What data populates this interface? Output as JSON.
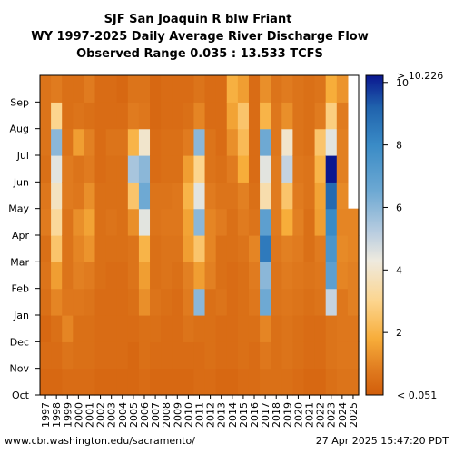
{
  "chart_data": {
    "type": "heatmap",
    "title_lines": [
      "SJF San Joaquin R blw Friant",
      "WY 1997-2025 Daily Average River Discharge Flow",
      "Observed Range 0.035 : 13.533 TCFS"
    ],
    "x_tick_labels": [
      "1997",
      "1998",
      "1999",
      "2000",
      "2001",
      "2002",
      "2003",
      "2004",
      "2005",
      "2006",
      "2007",
      "2008",
      "2009",
      "2010",
      "2011",
      "2012",
      "2013",
      "2014",
      "2015",
      "2016",
      "2017",
      "2018",
      "2019",
      "2020",
      "2021",
      "2022",
      "2023",
      "2024",
      "2025"
    ],
    "y_tick_labels": [
      "Oct",
      "Nov",
      "Dec",
      "Jan",
      "Feb",
      "Mar",
      "Apr",
      "May",
      "Jun",
      "Jul",
      "Aug",
      "Sep"
    ],
    "years": [
      1997,
      1998,
      1999,
      2000,
      2001,
      2002,
      2003,
      2004,
      2005,
      2006,
      2007,
      2008,
      2009,
      2010,
      2011,
      2012,
      2013,
      2014,
      2015,
      2016,
      2017,
      2018,
      2019,
      2020,
      2021,
      2022,
      2023,
      2024,
      2025
    ],
    "months": [
      "Oct",
      "Nov",
      "Dec",
      "Jan",
      "Feb",
      "Mar",
      "Apr",
      "May",
      "Jun",
      "Jul",
      "Aug",
      "Sep"
    ],
    "units": "TCFS",
    "colorbar": {
      "min": 0,
      "max": 10.226,
      "top_label": "> 10.226",
      "bottom_label": "< 0.051",
      "tick_values": [
        2,
        4,
        6,
        8,
        10
      ],
      "tick_labels": [
        "2",
        "4",
        "6",
        "8",
        "10"
      ]
    },
    "color_stops": [
      {
        "v": 0.0,
        "c": "#d15d0a"
      },
      {
        "v": 0.8,
        "c": "#e07b1f"
      },
      {
        "v": 1.8,
        "c": "#f7ad3a"
      },
      {
        "v": 3.0,
        "c": "#fcd58e"
      },
      {
        "v": 4.3,
        "c": "#eeeadf"
      },
      {
        "v": 5.2,
        "c": "#b9cde0"
      },
      {
        "v": 6.5,
        "c": "#6ea9d3"
      },
      {
        "v": 8.0,
        "c": "#3a8bc6"
      },
      {
        "v": 9.2,
        "c": "#2063ad"
      },
      {
        "v": 10.226,
        "c": "#0a178f"
      }
    ],
    "grid": false,
    "flow_monthly": [
      [
        0.3,
        0.4,
        0.3,
        0.5,
        0.6,
        0.5,
        0.8,
        0.7,
        0.5,
        0.6,
        0.6,
        0.6
      ],
      [
        0.3,
        0.4,
        0.5,
        1.0,
        1.5,
        2.5,
        3.2,
        3.8,
        4.5,
        6.0,
        3.0,
        0.8
      ],
      [
        0.4,
        0.6,
        1.0,
        0.7,
        0.6,
        0.6,
        0.6,
        0.8,
        0.8,
        0.6,
        0.5,
        0.5
      ],
      [
        0.4,
        0.5,
        0.5,
        0.7,
        0.9,
        1.0,
        1.2,
        0.7,
        0.6,
        1.5,
        0.6,
        0.5
      ],
      [
        0.4,
        0.5,
        0.5,
        0.6,
        0.8,
        1.3,
        1.6,
        1.2,
        0.8,
        0.9,
        0.5,
        0.8
      ],
      [
        0.3,
        0.4,
        0.4,
        0.4,
        0.5,
        0.5,
        0.5,
        0.5,
        0.4,
        0.4,
        0.4,
        0.4
      ],
      [
        0.3,
        0.4,
        0.4,
        0.4,
        0.4,
        0.5,
        0.6,
        0.5,
        0.5,
        0.6,
        0.4,
        0.4
      ],
      [
        0.3,
        0.4,
        0.4,
        0.4,
        0.4,
        0.5,
        0.5,
        0.5,
        0.5,
        0.6,
        0.4,
        0.3
      ],
      [
        0.3,
        0.3,
        0.4,
        0.5,
        0.6,
        0.6,
        1.2,
        2.5,
        5.5,
        2.0,
        0.8,
        0.6
      ],
      [
        0.4,
        0.5,
        0.5,
        1.2,
        1.5,
        2.0,
        4.5,
        6.5,
        6.0,
        4.0,
        0.7,
        0.6
      ],
      [
        0.3,
        0.4,
        0.5,
        0.6,
        0.5,
        0.5,
        0.6,
        0.6,
        0.4,
        0.4,
        0.3,
        0.3
      ],
      [
        0.3,
        0.4,
        0.4,
        0.5,
        0.6,
        0.6,
        0.7,
        0.6,
        0.5,
        0.5,
        0.4,
        0.4
      ],
      [
        0.3,
        0.4,
        0.4,
        0.4,
        0.5,
        0.6,
        0.7,
        0.7,
        0.5,
        0.5,
        0.4,
        0.4
      ],
      [
        0.3,
        0.4,
        0.6,
        0.8,
        0.9,
        1.5,
        1.6,
        2.0,
        1.5,
        0.8,
        0.5,
        0.4
      ],
      [
        0.4,
        0.4,
        0.5,
        6.0,
        1.5,
        2.5,
        6.0,
        4.5,
        3.0,
        6.0,
        1.0,
        0.6
      ],
      [
        0.4,
        0.5,
        0.5,
        0.5,
        0.9,
        1.0,
        1.0,
        0.8,
        0.6,
        0.6,
        0.4,
        0.4
      ],
      [
        0.3,
        0.4,
        0.4,
        0.6,
        0.5,
        0.5,
        0.8,
        0.6,
        0.5,
        0.4,
        0.4,
        0.4
      ],
      [
        0.3,
        0.4,
        0.4,
        0.4,
        0.4,
        0.5,
        0.5,
        0.6,
        0.8,
        1.2,
        1.6,
        1.9
      ],
      [
        0.4,
        0.5,
        0.5,
        0.5,
        0.5,
        0.6,
        0.8,
        0.9,
        1.8,
        2.2,
        2.5,
        1.5
      ],
      [
        0.4,
        0.4,
        0.5,
        0.7,
        0.8,
        1.0,
        0.6,
        0.5,
        0.4,
        0.4,
        0.4,
        0.4
      ],
      [
        0.5,
        0.7,
        1.0,
        6.5,
        6.0,
        8.5,
        7.0,
        3.5,
        4.5,
        6.5,
        2.0,
        1.2
      ],
      [
        0.5,
        0.5,
        0.5,
        0.6,
        0.6,
        0.7,
        0.8,
        0.8,
        0.8,
        0.7,
        0.7,
        0.6
      ],
      [
        0.5,
        0.6,
        0.6,
        0.7,
        0.8,
        0.9,
        1.8,
        2.5,
        5.0,
        4.0,
        1.2,
        0.8
      ],
      [
        0.4,
        0.5,
        0.5,
        0.6,
        0.7,
        0.8,
        0.9,
        0.8,
        0.7,
        0.6,
        0.6,
        0.6
      ],
      [
        0.3,
        0.4,
        0.4,
        0.5,
        0.6,
        0.5,
        0.5,
        0.6,
        0.6,
        0.5,
        0.5,
        0.5
      ],
      [
        0.3,
        0.4,
        0.4,
        0.6,
        0.7,
        0.8,
        1.5,
        1.6,
        2.0,
        2.5,
        0.8,
        0.6
      ],
      [
        0.5,
        0.6,
        0.6,
        5.0,
        7.0,
        7.5,
        8.0,
        9.0,
        10.3,
        4.5,
        2.8,
        1.8
      ],
      [
        0.6,
        0.7,
        0.7,
        0.7,
        1.0,
        1.1,
        1.0,
        1.1,
        0.9,
        0.9,
        0.8,
        1.3
      ],
      [
        0.6,
        0.7,
        0.7,
        0.9,
        0.9,
        1.0,
        1.0,
        null,
        null,
        null,
        null,
        null
      ]
    ]
  },
  "footer": {
    "left": "www.cbr.washington.edu/sacramento/",
    "right": "27 Apr 2025 15:47:20 PDT"
  }
}
